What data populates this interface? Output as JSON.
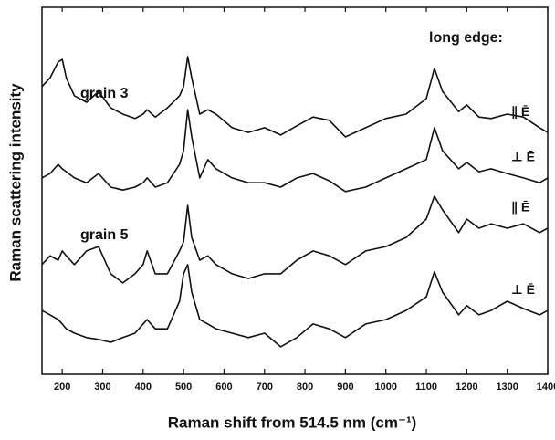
{
  "chart_data": {
    "type": "line",
    "x_label": "Raman shift from 514.5 nm (cm⁻¹)",
    "y_label": "Raman scattering intensity",
    "annotations": [
      "long edge:",
      "grain 3",
      "grain 5"
    ],
    "xlim": [
      150,
      1400
    ],
    "xticks": [
      200,
      300,
      400,
      500,
      600,
      700,
      800,
      900,
      1000,
      1100,
      1200,
      1300,
      1400
    ],
    "ylim": [
      0,
      100
    ],
    "x": [
      150,
      170,
      190,
      200,
      210,
      230,
      260,
      290,
      320,
      350,
      380,
      400,
      410,
      430,
      460,
      490,
      500,
      510,
      520,
      540,
      560,
      580,
      620,
      660,
      700,
      740,
      780,
      820,
      860,
      900,
      950,
      1000,
      1050,
      1100,
      1120,
      1140,
      1180,
      1200,
      1230,
      1260,
      1300,
      1340,
      1380,
      1400
    ],
    "series": [
      {
        "name": "∥ Ē",
        "color": "#111111",
        "values": [
          78.4,
          80.8,
          85.1,
          85.8,
          80.8,
          75.9,
          74.1,
          77.1,
          72.6,
          70.9,
          69.7,
          70.9,
          72.1,
          70.1,
          72.6,
          75.9,
          78.4,
          86.6,
          80.8,
          70.9,
          72.1,
          70.9,
          67.2,
          65.9,
          67.2,
          65.2,
          67.7,
          70.1,
          69.2,
          64.7,
          67.2,
          69.7,
          70.9,
          75.1,
          83.3,
          77.1,
          71.6,
          73.4,
          70.1,
          69.7,
          70.9,
          70.1,
          67.2,
          65.9
        ]
      },
      {
        "name": "⊥ Ē",
        "color": "#111111",
        "values": [
          53.5,
          54.7,
          57.2,
          56,
          55.2,
          53.5,
          52.2,
          54.7,
          51,
          50.2,
          51,
          52.2,
          53.5,
          51,
          52.2,
          57.2,
          60.9,
          72.1,
          64.7,
          53.5,
          58.5,
          56,
          53.5,
          52.2,
          52.2,
          51,
          53.5,
          54.7,
          52.7,
          49.8,
          51,
          53.5,
          56,
          58.5,
          67.2,
          60.9,
          56,
          57.7,
          55.2,
          56,
          54.7,
          53.5,
          52.2,
          53.5
        ]
      },
      {
        "name": "∥ Ē",
        "color": "#111111",
        "values": [
          29.9,
          32.3,
          31.1,
          33.6,
          32.3,
          29.9,
          33.6,
          34.8,
          27.4,
          24.9,
          27.4,
          29.9,
          33.6,
          27.4,
          27.4,
          33.6,
          36.1,
          46,
          37.3,
          31.1,
          32.3,
          29.9,
          27.4,
          26.1,
          27.4,
          27.4,
          31.1,
          33.6,
          32.3,
          29.9,
          33.6,
          34.8,
          37.3,
          42.3,
          48.5,
          44.8,
          38.6,
          42.3,
          39.8,
          41,
          39.8,
          41,
          38.6,
          39.8
        ]
      },
      {
        "name": "⊥ Ē",
        "color": "#111111",
        "values": [
          17.4,
          16.2,
          14.9,
          13.7,
          12.4,
          11.2,
          10,
          9.5,
          8.7,
          10,
          11.2,
          13.7,
          14.9,
          12.4,
          12.4,
          19.9,
          27.4,
          29.9,
          22.4,
          14.9,
          13.7,
          12.4,
          11.2,
          10,
          11.2,
          7.5,
          10,
          13.7,
          12.4,
          10,
          13.7,
          14.9,
          17.4,
          21.1,
          27.9,
          22.4,
          16.2,
          18.7,
          16.2,
          17.4,
          19.9,
          17.9,
          16.2,
          17.4
        ]
      }
    ]
  }
}
